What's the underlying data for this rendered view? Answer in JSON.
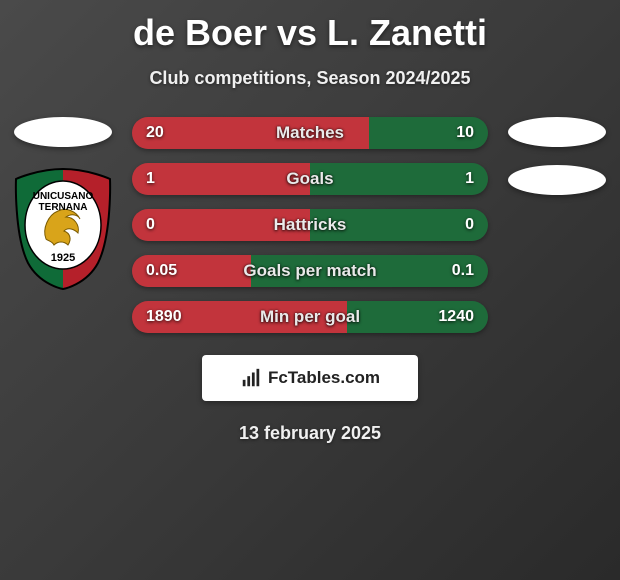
{
  "title": "de Boer vs L. Zanetti",
  "subtitle": "Club competitions, Season 2024/2025",
  "footer_brand": "FcTables.com",
  "footer_date": "13 february 2025",
  "colors": {
    "left_fill": "#c2343c",
    "right_fill": "#1e6b3a",
    "bar_label": "#eaeaea",
    "bar_value": "#ffffff",
    "ellipse": "#ffffff",
    "badge_bg": "#ffffff",
    "badge_text": "#222222"
  },
  "club_badge": {
    "top_text": "UNICUSANO",
    "mid_text": "TERNANA",
    "year": "1925",
    "outer_green": "#0f6b38",
    "outer_red": "#b5202a",
    "inner_white": "#ffffff",
    "dragon": "#d9a41a"
  },
  "stats": [
    {
      "label": "Matches",
      "left_val": "20",
      "right_val": "10",
      "left_pct": 66.7,
      "right_pct": 33.3
    },
    {
      "label": "Goals",
      "left_val": "1",
      "right_val": "1",
      "left_pct": 50.0,
      "right_pct": 50.0
    },
    {
      "label": "Hattricks",
      "left_val": "0",
      "right_val": "0",
      "left_pct": 50.0,
      "right_pct": 50.0
    },
    {
      "label": "Goals per match",
      "left_val": "0.05",
      "right_val": "0.1",
      "left_pct": 33.3,
      "right_pct": 66.7
    },
    {
      "label": "Min per goal",
      "left_val": "1890",
      "right_val": "1240",
      "left_pct": 60.4,
      "right_pct": 39.6
    }
  ]
}
